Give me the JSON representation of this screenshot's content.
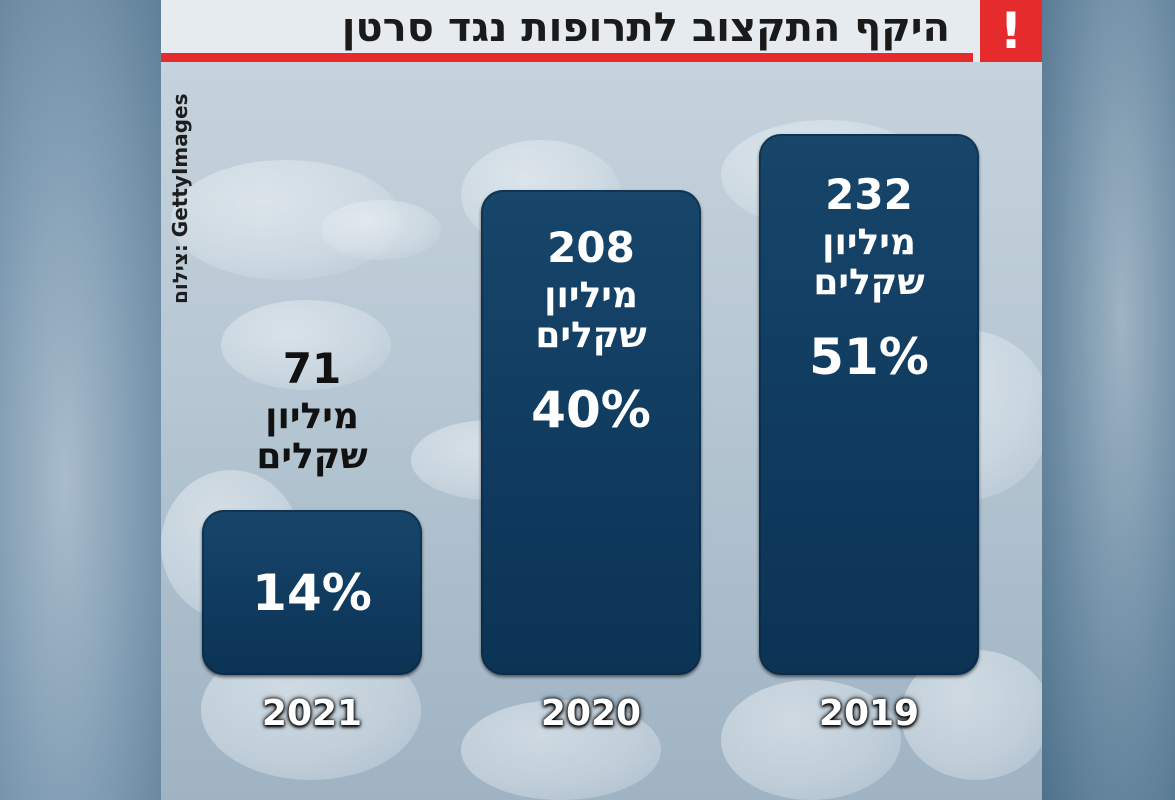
{
  "header": {
    "title": "היקף התקצוב לתרופות נגד סרטן",
    "alert_mark": "!"
  },
  "credit": "צילום: GettyImages",
  "colors": {
    "bar": "#0f3a5e",
    "accent": "#e52b2b"
  },
  "chart_data": {
    "type": "bar",
    "title": "היקף התקצוב לתרופות נגד סרטן",
    "xlabel": "",
    "ylabel": "",
    "unit": "מיליון שקלים",
    "categories": [
      "2021",
      "2020",
      "2019"
    ],
    "values": [
      71,
      208,
      232
    ],
    "percents": [
      "14%",
      "40%",
      "51%"
    ],
    "ylim": [
      0,
      232
    ],
    "grid": false,
    "legend": "none"
  }
}
